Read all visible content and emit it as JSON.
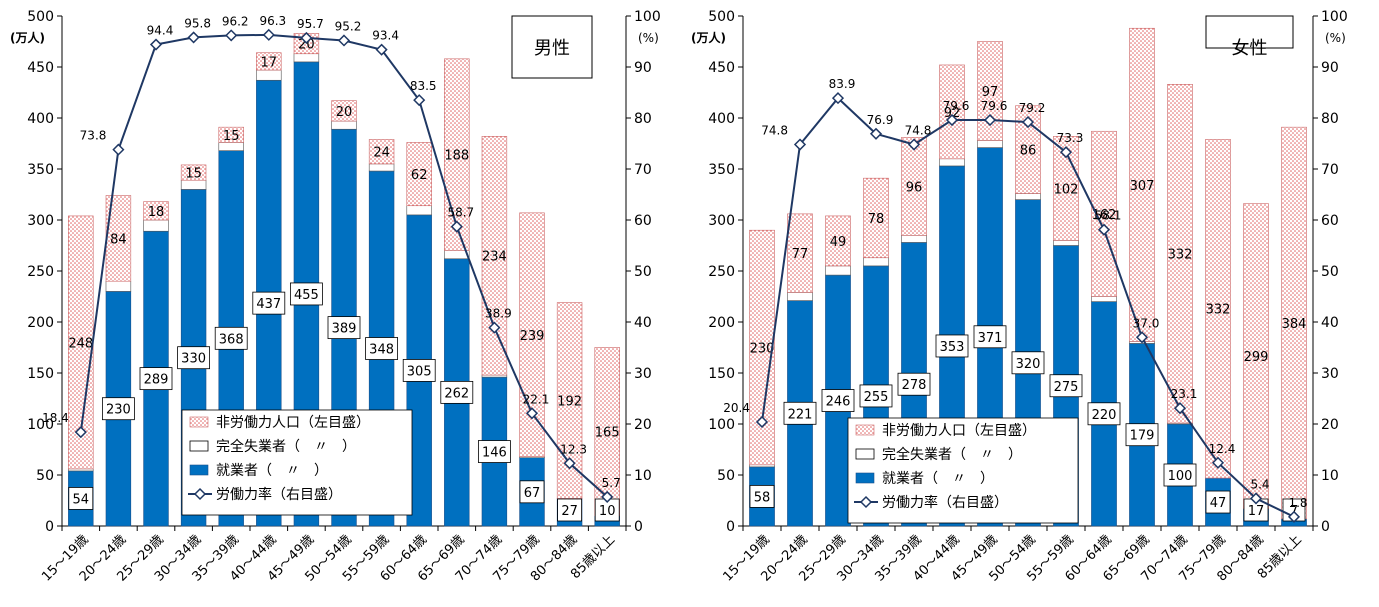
{
  "colors": {
    "employed": "#0070C0",
    "unemployed": "#FFFFFF",
    "not_in_labor_force_fill": "#FFFFFF",
    "not_in_labor_force_dots": "#E06060",
    "rate_line": "#1F3864",
    "axis": "#000000"
  },
  "chart_data": [
    {
      "type": "bar",
      "stacked": true,
      "title": "男性",
      "left_axis_unit": "(万人)",
      "right_axis_unit": "(%)",
      "ylim_left": [
        0,
        500
      ],
      "ylim_right": [
        0,
        100
      ],
      "yticks_left": [
        "0",
        "50",
        "100",
        "150",
        "200",
        "250",
        "300",
        "350",
        "400",
        "450",
        "500"
      ],
      "yticks_right": [
        "0",
        "10",
        "20",
        "30",
        "40",
        "50",
        "60",
        "70",
        "80",
        "90",
        "100"
      ],
      "categories": [
        "15～19歳",
        "20～24歳",
        "25～29歳",
        "30～34歳",
        "35～39歳",
        "40～44歳",
        "45～49歳",
        "50～54歳",
        "55～59歳",
        "60～64歳",
        "65～69歳",
        "70～74歳",
        "75～79歳",
        "80～84歳",
        "85歳以上"
      ],
      "series": [
        {
          "name": "就業者（　〃　）",
          "values": [
            54,
            230,
            289,
            330,
            368,
            437,
            455,
            389,
            348,
            305,
            262,
            146,
            67,
            27,
            10
          ],
          "labels": [
            "54",
            "230",
            "289",
            "330",
            "368",
            "437",
            "455",
            "389",
            "348",
            "305",
            "262",
            "146",
            "67",
            "27",
            "10"
          ]
        },
        {
          "name": "完全失業者（　〃　）",
          "values": [
            2,
            10,
            11,
            9,
            8,
            10,
            8,
            8,
            7,
            9,
            8,
            2,
            1,
            0,
            0
          ]
        },
        {
          "name": "非労働力人口（左目盛）",
          "values": [
            248,
            84,
            18,
            15,
            15,
            17,
            20,
            20,
            24,
            62,
            188,
            234,
            239,
            192,
            165
          ],
          "labels": [
            "248",
            "84",
            "18",
            "15",
            "15",
            "17",
            "20",
            "20",
            "24",
            "62",
            "188",
            "234",
            "239",
            "192",
            "165"
          ]
        },
        {
          "name": "労働力率（右目盛）",
          "axis": "right",
          "values": [
            18.4,
            73.8,
            94.4,
            95.8,
            96.2,
            96.3,
            95.7,
            95.2,
            93.4,
            83.5,
            58.7,
            38.9,
            22.1,
            12.3,
            5.7
          ],
          "labels": [
            "18.4",
            "73.8",
            "94.4",
            "95.8",
            "96.2",
            "96.3",
            "95.7",
            "95.2",
            "93.4",
            "83.5",
            "58.7",
            "38.9",
            "22.1",
            "12.3",
            "5.7"
          ]
        }
      ]
    },
    {
      "type": "bar",
      "stacked": true,
      "title": "女性",
      "left_axis_unit": "(万人)",
      "right_axis_unit": "(%)",
      "ylim_left": [
        0,
        500
      ],
      "ylim_right": [
        0,
        100
      ],
      "yticks_left": [
        "0",
        "50",
        "100",
        "150",
        "200",
        "250",
        "300",
        "350",
        "400",
        "450",
        "500"
      ],
      "yticks_right": [
        "0",
        "10",
        "20",
        "30",
        "40",
        "50",
        "60",
        "70",
        "80",
        "90",
        "100"
      ],
      "categories": [
        "15～19歳",
        "20～24歳",
        "25～29歳",
        "30～34歳",
        "35～39歳",
        "40～44歳",
        "45～49歳",
        "50～54歳",
        "55～59歳",
        "60～64歳",
        "65～69歳",
        "70～74歳",
        "75～79歳",
        "80～84歳",
        "85歳以上"
      ],
      "series": [
        {
          "name": "就業者（　〃　）",
          "values": [
            58,
            221,
            246,
            255,
            278,
            353,
            371,
            320,
            275,
            220,
            179,
            100,
            47,
            17,
            7
          ],
          "labels": [
            "58",
            "221",
            "246",
            "255",
            "278",
            "353",
            "371",
            "320",
            "275",
            "220",
            "179",
            "100",
            "47",
            "17",
            "7"
          ]
        },
        {
          "name": "完全失業者（　〃　）",
          "values": [
            2,
            8,
            9,
            8,
            7,
            7,
            7,
            6,
            5,
            5,
            2,
            1,
            0,
            0,
            0
          ]
        },
        {
          "name": "非労働力人口（左目盛）",
          "values": [
            230,
            77,
            49,
            78,
            96,
            92,
            97,
            86,
            102,
            162,
            307,
            332,
            332,
            299,
            384
          ],
          "labels": [
            "230",
            "77",
            "49",
            "78",
            "96",
            "92",
            "97",
            "86",
            "102",
            "162",
            "307",
            "332",
            "332",
            "299",
            "384"
          ]
        },
        {
          "name": "労働力率（右目盛）",
          "axis": "right",
          "values": [
            20.4,
            74.8,
            83.9,
            76.9,
            74.8,
            79.6,
            79.6,
            79.2,
            73.3,
            58.1,
            37.0,
            23.1,
            12.4,
            5.4,
            1.8
          ],
          "labels": [
            "20.4",
            "74.8",
            "83.9",
            "76.9",
            "74.8",
            "79.6",
            "79.6",
            "79.2",
            "73.3",
            "58.1",
            "37.0",
            "23.1",
            "12.4",
            "5.4",
            "1.8"
          ]
        }
      ]
    }
  ]
}
